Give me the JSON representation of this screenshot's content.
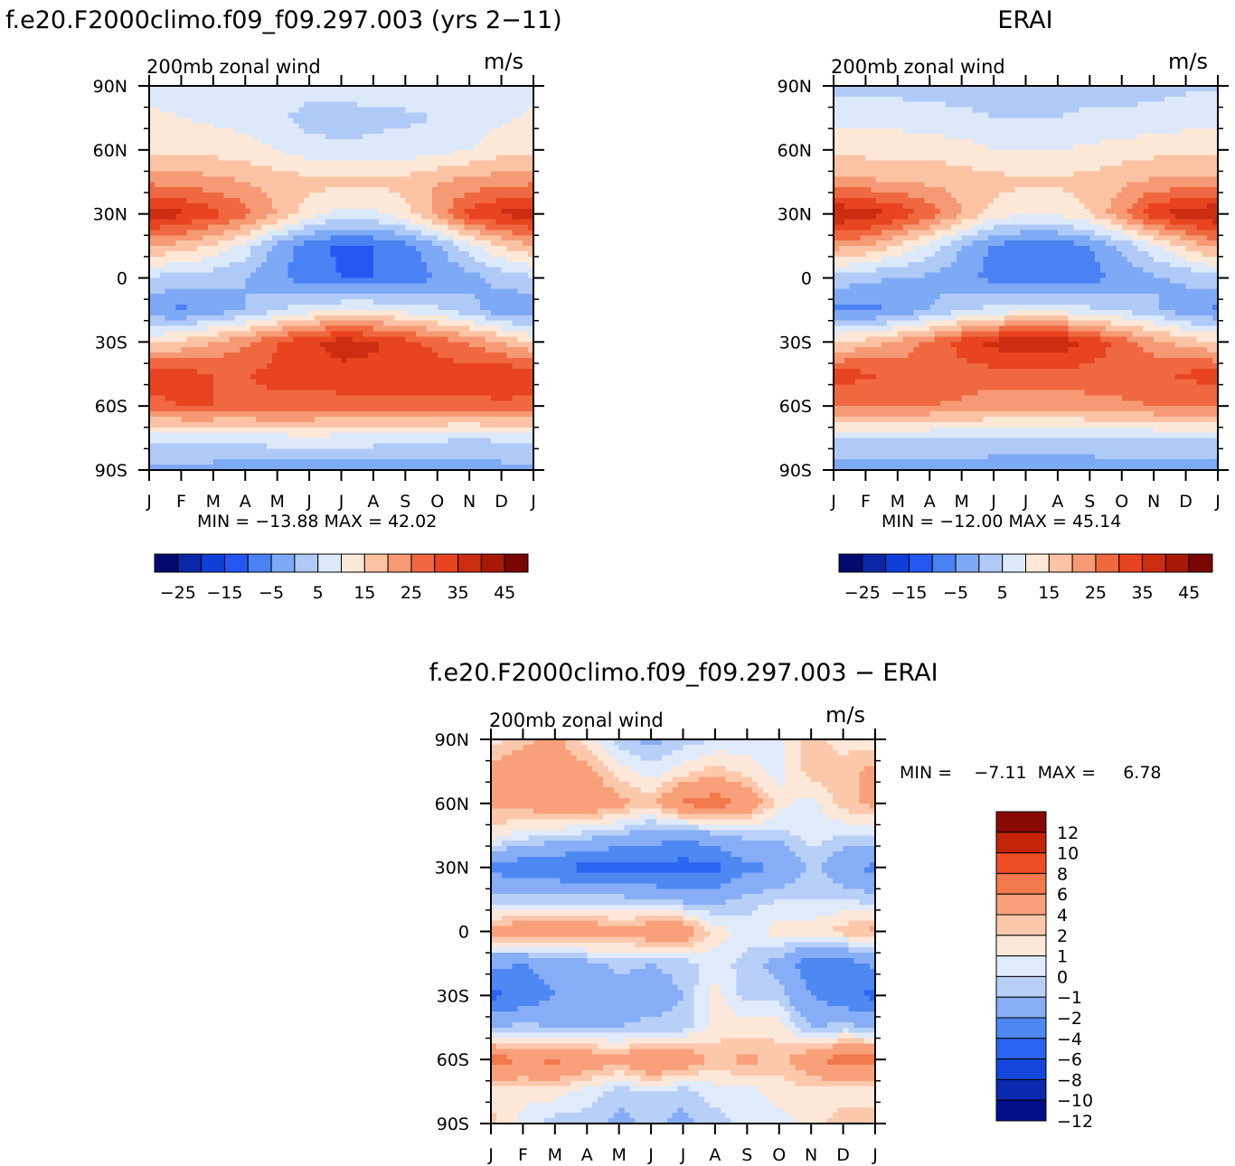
{
  "colors": {
    "scale15": [
      "#020a70",
      "#0a27a8",
      "#0f3fd9",
      "#2357f2",
      "#4a82f4",
      "#7ea9f5",
      "#b0caf8",
      "#dce9fa",
      "#fde8d8",
      "#fbc3a4",
      "#f59a74",
      "#f0683f",
      "#e7441f",
      "#cc2d10",
      "#a81a06",
      "#7a0603"
    ],
    "diff": [
      "#011089",
      "#0a2ab0",
      "#1446db",
      "#2b64f0",
      "#4e88f3",
      "#86adf6",
      "#b8cff8",
      "#dfeafa",
      "#fde7d8",
      "#fbc8ab",
      "#f8a07a",
      "#f3784c",
      "#ee4e24",
      "#c32409",
      "#8b0905"
    ]
  },
  "panels": [
    {
      "title": "f.e20.F2000climo.f09_f09.297.003 (yrs 2−11)",
      "subtitle": "200mb zonal wind",
      "units": "m/s",
      "stats": "MIN = −13.88 MAX =   42.02",
      "x_ticks": [
        "J",
        "F",
        "M",
        "A",
        "M",
        "J",
        "J",
        "A",
        "S",
        "O",
        "N",
        "D",
        "J"
      ],
      "y_ticks": [
        "90N",
        "60N",
        "30N",
        "0",
        "30S",
        "60S",
        "90S"
      ],
      "colorbar_labels": [
        "−25",
        "−15",
        "−5",
        "5",
        "15",
        "25",
        "35",
        "45"
      ]
    },
    {
      "title": "ERAI",
      "subtitle": "200mb zonal wind",
      "units": "m/s",
      "stats": "MIN = −12.00 MAX =   45.14",
      "x_ticks": [
        "J",
        "F",
        "M",
        "A",
        "M",
        "J",
        "J",
        "A",
        "S",
        "O",
        "N",
        "D",
        "J"
      ],
      "y_ticks": [
        "90N",
        "60N",
        "30N",
        "0",
        "30S",
        "60S",
        "90S"
      ],
      "colorbar_labels": [
        "−25",
        "−15",
        "−5",
        "5",
        "15",
        "25",
        "35",
        "45"
      ]
    },
    {
      "title": "f.e20.F2000climo.f09_f09.297.003 − ERAI",
      "subtitle": "200mb zonal wind",
      "units": "m/s",
      "stats": "MIN =    −7.11  MAX =     6.78",
      "x_ticks": [
        "J",
        "F",
        "M",
        "A",
        "M",
        "J",
        "J",
        "A",
        "S",
        "O",
        "N",
        "D",
        "J"
      ],
      "y_ticks": [
        "90N",
        "60N",
        "30N",
        "0",
        "30S",
        "60S",
        "90S"
      ],
      "colorbar_labels": [
        "12",
        "10",
        "8",
        "6",
        "4",
        "2",
        "1",
        "0",
        "−1",
        "−2",
        "−4",
        "−6",
        "−8",
        "−10",
        "−12"
      ]
    }
  ],
  "chart_data": [
    {
      "type": "heatmap",
      "title": "f.e20.F2000climo.f09_f09.297.003 (yrs 2−11)",
      "subtitle": "200mb zonal wind",
      "units": "m/s",
      "x": [
        "J",
        "F",
        "M",
        "A",
        "M",
        "J",
        "J",
        "A",
        "S",
        "O",
        "N",
        "D",
        "J"
      ],
      "y": [
        90,
        75,
        60,
        45,
        30,
        15,
        0,
        -15,
        -30,
        -45,
        -60,
        -75,
        -90
      ],
      "levels": [
        -25,
        -20,
        -15,
        -10,
        -5,
        0,
        5,
        10,
        15,
        20,
        25,
        30,
        35,
        40,
        45
      ],
      "min": -13.88,
      "max": 42.02,
      "values": [
        [
          8,
          8,
          8,
          8,
          8,
          7,
          7,
          7,
          8,
          8,
          8,
          8,
          8
        ],
        [
          11,
          10,
          9,
          8,
          6,
          3,
          3,
          4,
          4,
          5,
          7,
          9,
          11
        ],
        [
          14,
          13,
          13,
          12,
          10,
          7,
          6,
          6,
          7,
          8,
          10,
          13,
          14
        ],
        [
          24,
          23,
          22,
          20,
          18,
          17,
          16,
          16,
          17,
          20,
          22,
          23,
          24
        ],
        [
          38,
          36,
          32,
          27,
          20,
          12,
          8,
          9,
          13,
          22,
          32,
          36,
          38
        ],
        [
          20,
          18,
          14,
          8,
          -2,
          -8,
          -11,
          -10,
          -7,
          -1,
          8,
          15,
          20
        ],
        [
          4,
          3,
          2,
          0,
          -4,
          -8,
          -10,
          -10,
          -8,
          -5,
          -2,
          2,
          4
        ],
        [
          -4,
          -6,
          -3,
          0,
          5,
          8,
          10,
          10,
          8,
          6,
          2,
          -4,
          -4
        ],
        [
          14,
          16,
          20,
          24,
          30,
          34,
          38,
          36,
          32,
          28,
          24,
          20,
          14
        ],
        [
          34,
          32,
          30,
          30,
          31,
          32,
          33,
          33,
          33,
          33,
          33,
          34,
          34
        ],
        [
          28,
          30,
          30,
          29,
          29,
          28,
          28,
          28,
          28,
          28,
          28,
          29,
          28
        ],
        [
          6,
          6,
          6,
          7,
          8,
          9,
          8,
          8,
          7,
          6,
          5,
          6,
          6
        ],
        [
          -2,
          -2,
          -2,
          -3,
          -3,
          -4,
          -4,
          -4,
          -3,
          -3,
          -2,
          -2,
          -2
        ]
      ]
    },
    {
      "type": "heatmap",
      "title": "ERAI",
      "subtitle": "200mb zonal wind",
      "units": "m/s",
      "x": [
        "J",
        "F",
        "M",
        "A",
        "M",
        "J",
        "J",
        "A",
        "S",
        "O",
        "N",
        "D",
        "J"
      ],
      "y": [
        90,
        75,
        60,
        45,
        30,
        15,
        0,
        -15,
        -30,
        -45,
        -60,
        -75,
        -90
      ],
      "levels": [
        -25,
        -20,
        -15,
        -10,
        -5,
        0,
        5,
        10,
        15,
        20,
        25,
        30,
        35,
        40,
        45
      ],
      "min": -12.0,
      "max": 45.14,
      "values": [
        [
          4,
          3,
          3,
          3,
          3,
          3,
          3,
          3,
          3,
          3,
          3,
          4,
          4
        ],
        [
          8,
          8,
          8,
          7,
          6,
          5,
          5,
          5,
          6,
          6,
          7,
          8,
          8
        ],
        [
          13,
          13,
          13,
          13,
          12,
          10,
          10,
          10,
          11,
          12,
          13,
          13,
          13
        ],
        [
          22,
          21,
          20,
          19,
          18,
          17,
          16,
          16,
          17,
          19,
          21,
          22,
          22
        ],
        [
          40,
          38,
          34,
          28,
          20,
          13,
          10,
          11,
          15,
          24,
          34,
          38,
          40
        ],
        [
          22,
          20,
          14,
          8,
          0,
          -6,
          -8,
          -8,
          -5,
          1,
          9,
          16,
          22
        ],
        [
          3,
          1,
          0,
          -1,
          -3,
          -7,
          -9,
          -9,
          -7,
          -4,
          -1,
          1,
          3
        ],
        [
          -6,
          -7,
          -4,
          0,
          4,
          7,
          8,
          8,
          6,
          4,
          1,
          -3,
          -6
        ],
        [
          15,
          17,
          21,
          26,
          32,
          37,
          40,
          39,
          34,
          28,
          22,
          18,
          15
        ],
        [
          32,
          31,
          29,
          28,
          28,
          28,
          28,
          28,
          28,
          28,
          29,
          31,
          32
        ],
        [
          26,
          26,
          26,
          25,
          24,
          22,
          22,
          22,
          23,
          24,
          25,
          26,
          26
        ],
        [
          5,
          5,
          5,
          5,
          5,
          4,
          4,
          4,
          4,
          5,
          5,
          5,
          5
        ],
        [
          -3,
          -3,
          -3,
          -3,
          -3,
          -3,
          -3,
          -3,
          -3,
          -3,
          -3,
          -3,
          -3
        ]
      ]
    },
    {
      "type": "heatmap",
      "title": "f.e20.F2000climo.f09_f09.297.003 − ERAI",
      "subtitle": "200mb zonal wind",
      "units": "m/s",
      "x": [
        "J",
        "F",
        "M",
        "A",
        "M",
        "J",
        "J",
        "A",
        "S",
        "O",
        "N",
        "D",
        "J"
      ],
      "y": [
        90,
        75,
        60,
        45,
        30,
        15,
        0,
        -15,
        -30,
        -45,
        -60,
        -75,
        -90
      ],
      "levels": [
        -12,
        -10,
        -8,
        -6,
        -4,
        -2,
        -1,
        0,
        1,
        2,
        4,
        6,
        8,
        10,
        12
      ],
      "min": -7.11,
      "max": 6.78,
      "values": [
        [
          0.5,
          1.5,
          2.5,
          0.5,
          -1.5,
          -2.5,
          -1.5,
          -1,
          -0.5,
          -0.5,
          1.5,
          0.5,
          0.5
        ],
        [
          2.5,
          3.5,
          2.5,
          2.5,
          0.5,
          -0.5,
          0.5,
          1.5,
          0.5,
          -0.5,
          1.5,
          1.5,
          2.5
        ],
        [
          2.5,
          2.5,
          3.5,
          3.5,
          2.5,
          1.5,
          4.5,
          5,
          3.5,
          0.5,
          -0.5,
          1.5,
          2.5
        ],
        [
          0.5,
          -0.5,
          -1,
          -1.5,
          -2,
          -3,
          -3.5,
          -2.5,
          -1.5,
          -1.5,
          -0.5,
          -1,
          -1
        ],
        [
          -4.5,
          -5.5,
          -5.5,
          -7,
          -7,
          -6.5,
          -7,
          -6.5,
          -4.5,
          -4,
          -1.5,
          -3.5,
          -4.5
        ],
        [
          -1.5,
          -1.5,
          -1.5,
          -1.5,
          -1.5,
          -2,
          -2.5,
          -2.5,
          -1.5,
          -1,
          -1,
          -1,
          -1.5
        ],
        [
          2.5,
          3.5,
          3.5,
          3.5,
          2.5,
          3.5,
          3.5,
          0.5,
          -0.5,
          0.5,
          0.5,
          1.5,
          2.5
        ],
        [
          -3.5,
          -4,
          -3,
          -2.5,
          -1.5,
          -2,
          -1.5,
          -0.5,
          -1.5,
          -2.5,
          -5.5,
          -5,
          -3.5
        ],
        [
          -6.5,
          -5.5,
          -4,
          -3.5,
          -3,
          -3,
          -2,
          0.5,
          -1.5,
          -1.5,
          -4,
          -5.5,
          -6.5
        ],
        [
          -2,
          -1.5,
          -2,
          -2,
          -2,
          -1.5,
          -1.5,
          0.5,
          0.5,
          0.5,
          -2,
          -1.5,
          -2
        ],
        [
          5,
          4,
          4.5,
          3.5,
          2.5,
          4.5,
          3.5,
          1.5,
          2.5,
          1.5,
          3.5,
          5,
          5
        ],
        [
          0.5,
          0.5,
          0.5,
          -0.5,
          -1.5,
          -1,
          -1.5,
          -0.5,
          -0.5,
          0.5,
          0.5,
          0.5,
          0.5
        ],
        [
          1.5,
          -0.5,
          -1.5,
          -1.5,
          -2.5,
          -1.5,
          -2.5,
          -1.5,
          -0.5,
          -0.5,
          0.5,
          1.5,
          1.5
        ]
      ]
    }
  ]
}
